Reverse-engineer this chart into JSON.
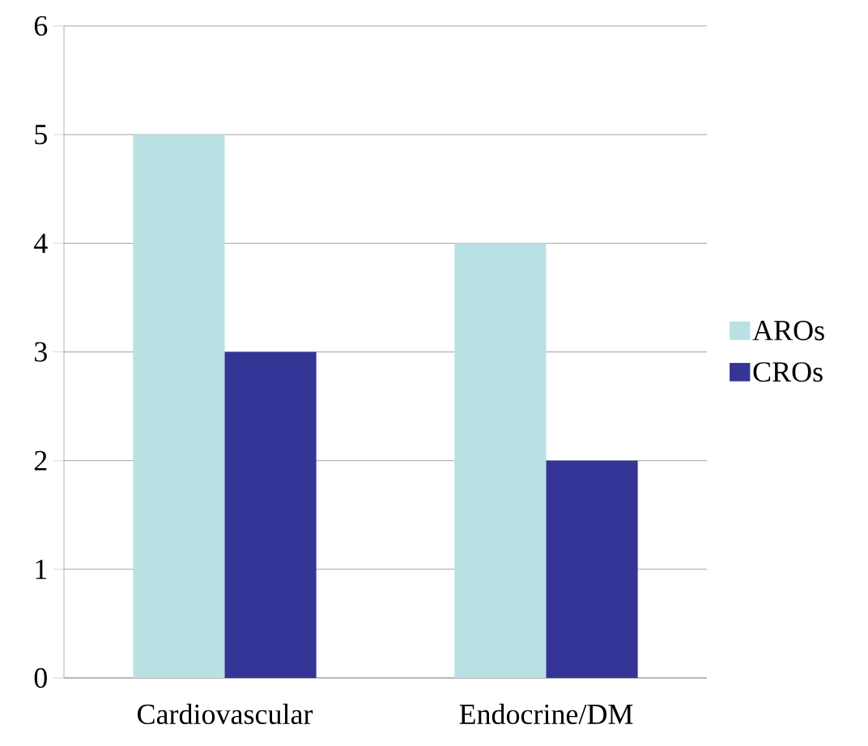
{
  "chart_data": {
    "type": "bar",
    "categories": [
      "Cardiovascular",
      "Endocrine/DM"
    ],
    "series": [
      {
        "name": "AROs",
        "color": "#b9e0e3",
        "values": [
          5,
          4
        ]
      },
      {
        "name": "CROs",
        "color": "#353497",
        "values": [
          3,
          2
        ]
      }
    ],
    "ylim": [
      0,
      6
    ],
    "yticks": [
      0,
      1,
      2,
      3,
      4,
      5,
      6
    ],
    "grid": "y",
    "legend": "right"
  }
}
